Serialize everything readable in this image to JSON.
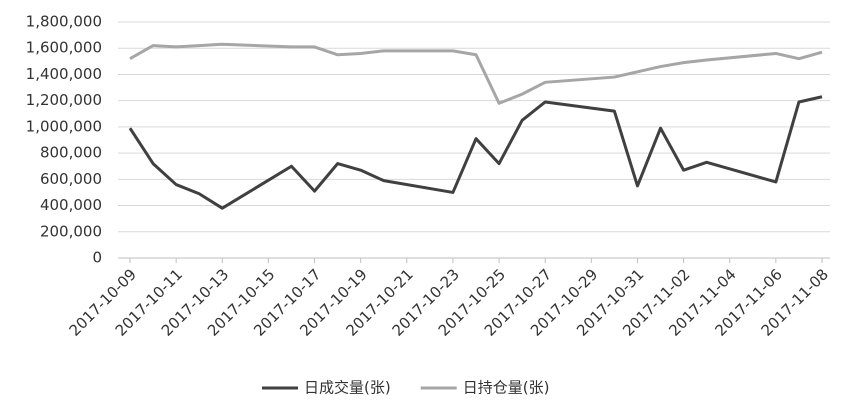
{
  "chart_data": {
    "type": "line",
    "x": [
      "2017-10-09",
      "2017-10-10",
      "2017-10-11",
      "2017-10-12",
      "2017-10-13",
      "2017-10-16",
      "2017-10-17",
      "2017-10-18",
      "2017-10-19",
      "2017-10-20",
      "2017-10-23",
      "2017-10-24",
      "2017-10-25",
      "2017-10-26",
      "2017-10-27",
      "2017-10-30",
      "2017-10-31",
      "2017-11-01",
      "2017-11-02",
      "2017-11-03",
      "2017-11-06",
      "2017-11-07",
      "2017-11-08"
    ],
    "series": [
      {
        "name": "日成交量(张)",
        "color": "#404040",
        "values": [
          990000,
          720000,
          560000,
          490000,
          380000,
          700000,
          510000,
          720000,
          670000,
          590000,
          500000,
          910000,
          720000,
          1050000,
          1190000,
          1120000,
          550000,
          990000,
          670000,
          730000,
          580000,
          1190000,
          1230000
        ]
      },
      {
        "name": "日持仓量(张)",
        "color": "#a6a6a6",
        "values": [
          1520000,
          1620000,
          1610000,
          1620000,
          1630000,
          1610000,
          1610000,
          1550000,
          1560000,
          1580000,
          1580000,
          1550000,
          1180000,
          1250000,
          1340000,
          1380000,
          1420000,
          1460000,
          1490000,
          1510000,
          1560000,
          1520000,
          1570000
        ]
      }
    ],
    "xlim": [
      "2017-10-09",
      "2017-11-08"
    ],
    "xticks": [
      "2017-10-09",
      "2017-10-11",
      "2017-10-13",
      "2017-10-15",
      "2017-10-17",
      "2017-10-19",
      "2017-10-21",
      "2017-10-23",
      "2017-10-25",
      "2017-10-27",
      "2017-10-29",
      "2017-10-31",
      "2017-11-02",
      "2017-11-04",
      "2017-11-06",
      "2017-11-08"
    ],
    "ylim": [
      0,
      1800000
    ],
    "yticks": [
      0,
      {
        "value": 200000,
        "label": "200,000"
      },
      {
        "value": 400000,
        "label": "400,000"
      },
      {
        "value": 600000,
        "label": "600,000"
      },
      {
        "value": 800000,
        "label": "800,000"
      },
      {
        "value": 1000000,
        "label": "1,000,000"
      },
      {
        "value": 1200000,
        "label": "1,200,000"
      },
      {
        "value": 1400000,
        "label": "1,400,000"
      },
      {
        "value": 1600000,
        "label": "1,600,000"
      },
      {
        "value": 1800000,
        "label": "1,800,000"
      }
    ],
    "grid": true,
    "legend": "bottom"
  }
}
